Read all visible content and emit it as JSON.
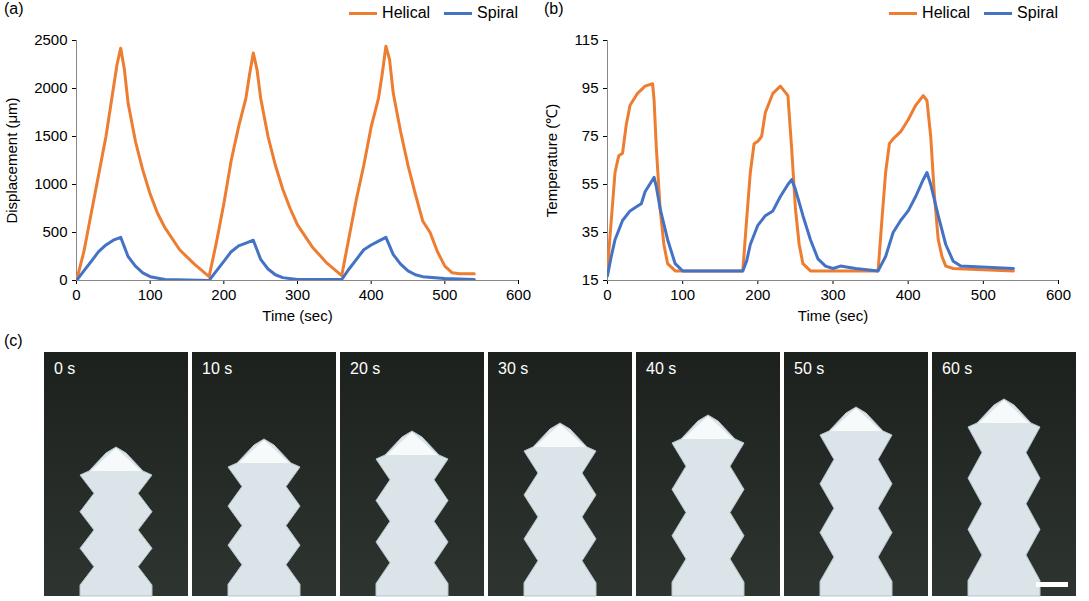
{
  "chart_data": [
    {
      "type": "line",
      "title": "(a)",
      "x_label": "Time (sec)",
      "y_label": "Displacement (μm)",
      "xlim": [
        0,
        600
      ],
      "xticks": [
        0,
        100,
        200,
        300,
        400,
        500,
        600
      ],
      "ylim": [
        0,
        2500
      ],
      "yticks": [
        0,
        500,
        1000,
        1500,
        2000,
        2500
      ],
      "legend": "top-right",
      "series": [
        {
          "name": "Helical",
          "color": "#ed7d31",
          "x": [
            0,
            10,
            20,
            30,
            40,
            50,
            55,
            60,
            65,
            70,
            80,
            90,
            100,
            110,
            120,
            140,
            160,
            180,
            190,
            200,
            210,
            220,
            230,
            235,
            240,
            245,
            250,
            260,
            270,
            280,
            290,
            300,
            320,
            340,
            360,
            370,
            380,
            390,
            400,
            410,
            415,
            420,
            425,
            430,
            440,
            450,
            460,
            470,
            480,
            490,
            500,
            510,
            520,
            540
          ],
          "values": [
            0,
            300,
            700,
            1100,
            1500,
            2000,
            2250,
            2420,
            2200,
            1850,
            1450,
            1150,
            900,
            700,
            550,
            320,
            170,
            40,
            400,
            800,
            1250,
            1600,
            1900,
            2150,
            2370,
            2200,
            1900,
            1500,
            1200,
            950,
            750,
            580,
            350,
            180,
            50,
            450,
            850,
            1200,
            1600,
            1900,
            2150,
            2440,
            2300,
            1950,
            1550,
            1200,
            900,
            620,
            500,
            300,
            150,
            80,
            70,
            70
          ]
        },
        {
          "name": "Spiral",
          "color": "#4472c4",
          "x": [
            0,
            10,
            20,
            30,
            40,
            50,
            60,
            65,
            70,
            80,
            90,
            100,
            120,
            180,
            190,
            200,
            210,
            220,
            230,
            240,
            245,
            250,
            260,
            270,
            280,
            300,
            360,
            370,
            380,
            390,
            400,
            410,
            420,
            425,
            430,
            440,
            450,
            460,
            470,
            500,
            540
          ],
          "values": [
            0,
            100,
            200,
            300,
            370,
            420,
            450,
            350,
            250,
            150,
            80,
            40,
            10,
            0,
            100,
            200,
            300,
            360,
            390,
            420,
            320,
            220,
            120,
            60,
            30,
            10,
            10,
            120,
            220,
            320,
            370,
            410,
            450,
            360,
            270,
            170,
            100,
            60,
            40,
            20,
            10
          ]
        }
      ]
    },
    {
      "type": "line",
      "title": "(b)",
      "x_label": "Time (sec)",
      "y_label": "Temperature (℃)",
      "xlim": [
        0,
        600
      ],
      "xticks": [
        0,
        100,
        200,
        300,
        400,
        500,
        600
      ],
      "ylim": [
        15,
        115
      ],
      "yticks": [
        15,
        35,
        55,
        75,
        95,
        115
      ],
      "legend": "top-right",
      "series": [
        {
          "name": "Helical",
          "color": "#ed7d31",
          "x": [
            0,
            5,
            10,
            15,
            20,
            25,
            30,
            40,
            50,
            60,
            62,
            65,
            70,
            75,
            80,
            90,
            180,
            185,
            190,
            195,
            200,
            205,
            210,
            220,
            230,
            235,
            240,
            245,
            250,
            255,
            260,
            270,
            360,
            365,
            370,
            375,
            380,
            390,
            400,
            410,
            420,
            425,
            430,
            435,
            440,
            445,
            450,
            460,
            540
          ],
          "values": [
            20,
            40,
            60,
            67,
            68,
            80,
            88,
            93,
            96,
            97,
            90,
            70,
            45,
            30,
            22,
            19,
            19,
            40,
            60,
            72,
            73,
            75,
            85,
            93,
            96,
            94,
            92,
            70,
            45,
            30,
            22,
            19,
            19,
            40,
            60,
            72,
            74,
            77,
            82,
            88,
            92,
            90,
            75,
            50,
            32,
            25,
            21,
            20,
            19
          ]
        },
        {
          "name": "Spiral",
          "color": "#4472c4",
          "x": [
            0,
            5,
            10,
            20,
            30,
            40,
            45,
            50,
            60,
            62,
            65,
            70,
            80,
            90,
            100,
            180,
            185,
            190,
            200,
            210,
            220,
            230,
            240,
            245,
            250,
            260,
            270,
            280,
            290,
            300,
            310,
            330,
            360,
            370,
            380,
            390,
            400,
            410,
            420,
            425,
            430,
            440,
            450,
            460,
            470,
            540
          ],
          "values": [
            17,
            25,
            32,
            40,
            44,
            46,
            47,
            52,
            57,
            58,
            54,
            45,
            32,
            22,
            19,
            19,
            23,
            30,
            38,
            42,
            44,
            50,
            55,
            57,
            53,
            42,
            32,
            24,
            21,
            20,
            21,
            20,
            19,
            25,
            35,
            40,
            44,
            50,
            57,
            60,
            55,
            42,
            30,
            23,
            21,
            20
          ]
        }
      ]
    }
  ],
  "image_panel": {
    "label": "(c)",
    "frames": [
      "0 s",
      "10 s",
      "20 s",
      "30 s",
      "40 s",
      "50 s",
      "60 s"
    ]
  }
}
